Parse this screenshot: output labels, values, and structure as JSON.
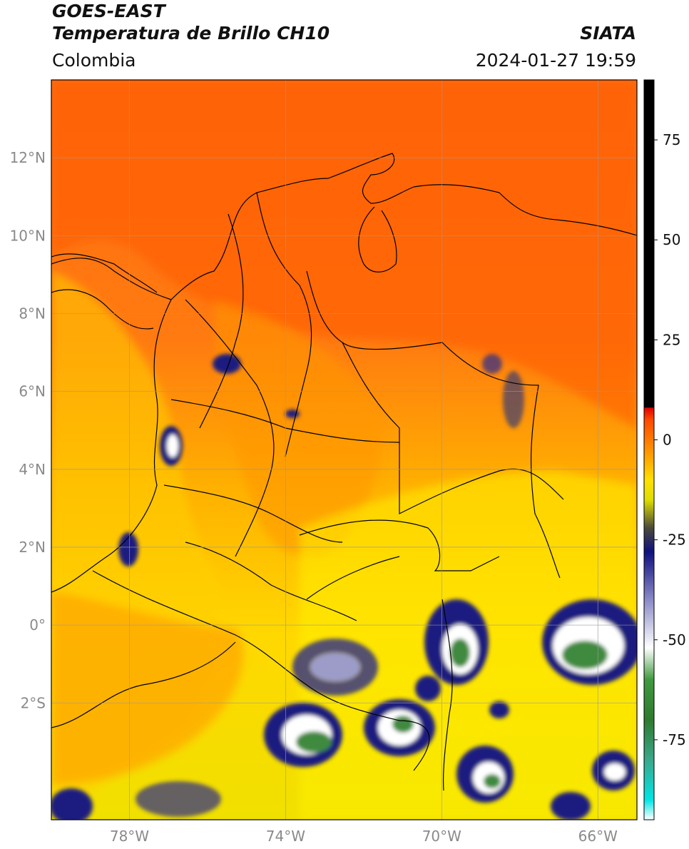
{
  "header": {
    "line1": "GOES-EAST",
    "line2": "Temperatura de Brillo CH10",
    "brand": "SIATA",
    "region": "Colombia",
    "datetime": "2024-01-27 19:59"
  },
  "map": {
    "extent": {
      "lon_min": -80.0,
      "lon_max": -65.0,
      "lat_min": -5.0,
      "lat_max": 14.0
    },
    "lat_ticks": [
      {
        "value": 12,
        "label": "12°N"
      },
      {
        "value": 10,
        "label": "10°N"
      },
      {
        "value": 8,
        "label": "8°N"
      },
      {
        "value": 6,
        "label": "6°N"
      },
      {
        "value": 4,
        "label": "4°N"
      },
      {
        "value": 2,
        "label": "2°N"
      },
      {
        "value": 0,
        "label": "0°"
      },
      {
        "value": -2,
        "label": "2°S"
      }
    ],
    "lon_ticks": [
      {
        "value": -78,
        "label": "78°W"
      },
      {
        "value": -74,
        "label": "74°W"
      },
      {
        "value": -70,
        "label": "70°W"
      },
      {
        "value": -66,
        "label": "66°W"
      }
    ],
    "grid": true,
    "colors": {
      "warm": "#ff6a00",
      "mid": "#ffd400",
      "cold": "#1a1a80",
      "coldest": "#3a8a4a"
    }
  },
  "colorbar": {
    "range": [
      -95,
      90
    ],
    "ticks": [
      {
        "value": 75,
        "label": "75"
      },
      {
        "value": 50,
        "label": "50"
      },
      {
        "value": 25,
        "label": "25"
      },
      {
        "value": 0,
        "label": "0"
      },
      {
        "value": -25,
        "label": "-25"
      },
      {
        "value": -50,
        "label": "-50"
      },
      {
        "value": -75,
        "label": "-75"
      }
    ],
    "stops": [
      {
        "value": -95,
        "color": "#ffffff"
      },
      {
        "value": -90,
        "color": "#00e5e5"
      },
      {
        "value": -80,
        "color": "#3aa88a"
      },
      {
        "value": -70,
        "color": "#2f7a2f"
      },
      {
        "value": -60,
        "color": "#3f9a3f"
      },
      {
        "value": -52,
        "color": "#ffffff"
      },
      {
        "value": -40,
        "color": "#8a8ac8"
      },
      {
        "value": -28,
        "color": "#101080"
      },
      {
        "value": -22,
        "color": "#4a4a3a"
      },
      {
        "value": -15,
        "color": "#dede00"
      },
      {
        "value": -10,
        "color": "#ffe000"
      },
      {
        "value": -5,
        "color": "#ffaa00"
      },
      {
        "value": 5,
        "color": "#ff4a00"
      },
      {
        "value": 8,
        "color": "#e00000"
      },
      {
        "value": 8.1,
        "color": "#000000"
      },
      {
        "value": 90,
        "color": "#000000"
      }
    ]
  }
}
